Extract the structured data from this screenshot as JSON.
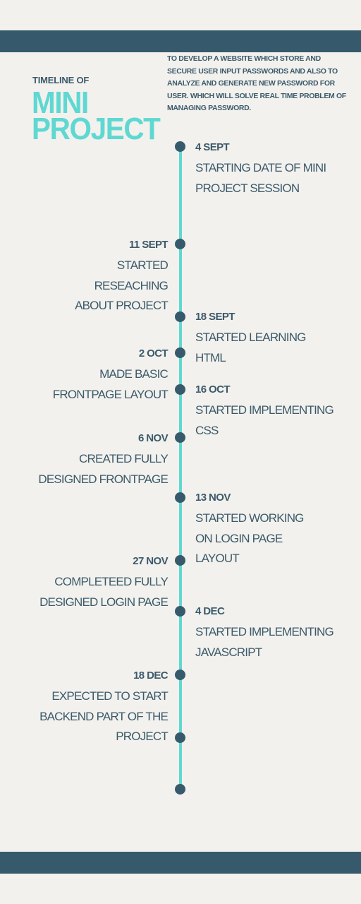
{
  "header": {
    "eyebrow": "TIMELINE OF",
    "title_line1": "MINI",
    "title_line2": "PROJECT",
    "summary": "TO DEVELOP A WEBSITE WHICH  STORE AND\nSECURE USER INPUT PASSWORDS AND ALSO TO\nANALYZE AND  GENERATE NEW PASSWORD FOR\nUSER. WHICH WILL SOLVE REAL TIME PROBLEM OF\nMANAGING PASSWORD."
  },
  "colors": {
    "band": "#365a6c",
    "accent": "#5fd8d2",
    "text": "#3c5a6b",
    "background": "#f2f1ed"
  },
  "timeline": {
    "events": [
      {
        "date": "4 SEPT",
        "text": "STARTING DATE OF MINI\nPROJECT SESSION",
        "side": "right"
      },
      {
        "date": "11 SEPT",
        "text": "STARTED\nRESEACHING\nABOUT PROJECT",
        "side": "left"
      },
      {
        "date": "18 SEPT",
        "text": "STARTED LEARNING\nHTML",
        "side": "right"
      },
      {
        "date": "2 OCT",
        "text": "MADE BASIC\nFRONTPAGE LAYOUT",
        "side": "left"
      },
      {
        "date": "16 OCT",
        "text": "STARTED IMPLEMENTING\nCSS",
        "side": "right"
      },
      {
        "date": "6 NOV",
        "text": "CREATED FULLY\nDESIGNED FRONTPAGE",
        "side": "left"
      },
      {
        "date": "13 NOV",
        "text": "STARTED WORKING\nON LOGIN PAGE\nLAYOUT",
        "side": "right"
      },
      {
        "date": "27 NOV",
        "text": "COMPLETEED FULLY\nDESIGNED LOGIN PAGE",
        "side": "left"
      },
      {
        "date": "4 DEC",
        "text": "STARTED IMPLEMENTING\nJAVASCRIPT",
        "side": "right"
      },
      {
        "date": "18 DEC",
        "text": "EXPECTED TO START\nBACKEND PART OF THE\nPROJECT",
        "side": "left"
      }
    ]
  }
}
